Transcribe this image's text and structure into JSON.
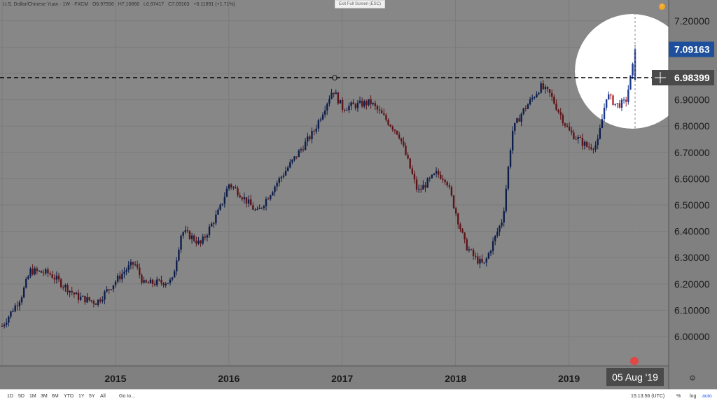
{
  "legend": {
    "symbol": "U.S. Dollar/Chinese Yuan · 1W · FXCM",
    "open": "O6.97556",
    "high": "H7.10866",
    "low": "L6.97417",
    "close": "C7.09163",
    "change": "+0.11891 (+1.71%)"
  },
  "toolbar": {
    "exit_fullscreen": "Exit Full Screen (ESC)",
    "ranges": [
      "1D",
      "5D",
      "1M",
      "3M",
      "6M",
      "YTD",
      "1Y",
      "5Y",
      "All"
    ],
    "goto": "Go to...",
    "time": "15:13:56 (UTC)",
    "pct": "%",
    "log": "log",
    "auto": "auto"
  },
  "labels": {
    "last_price": "7.09163",
    "crosshair_price": "6.98399",
    "crosshair_date": "05 Aug '19"
  },
  "colors": {
    "up": "#1c3a8c",
    "down": "#b0262e",
    "last_price_bg": "#1e4f9c",
    "crosshair_bg": "#4a4a4a",
    "overlay": "rgba(0,0,0,0.47)"
  },
  "chart_data": {
    "type": "candlestick",
    "x_ticks": [
      "2015",
      "2016",
      "2017",
      "2018",
      "2019"
    ],
    "y_ticks": [
      "6.00000",
      "6.10000",
      "6.20000",
      "6.30000",
      "6.40000",
      "6.50000",
      "6.60000",
      "6.70000",
      "6.80000",
      "6.90000",
      "7.00000",
      "7.10000",
      "7.20000"
    ],
    "ylim": [
      5.95,
      7.23
    ],
    "time_range": [
      "2014-01",
      "2019-08"
    ],
    "reference_line": 6.98399,
    "anchors": [
      [
        "2014-01",
        6.04
      ],
      [
        "2014-03",
        6.15
      ],
      [
        "2014-04",
        6.25
      ],
      [
        "2014-06",
        6.24
      ],
      [
        "2014-09",
        6.15
      ],
      [
        "2014-11",
        6.13
      ],
      [
        "2015-02",
        6.25
      ],
      [
        "2015-03",
        6.28
      ],
      [
        "2015-04",
        6.2
      ],
      [
        "2015-07",
        6.21
      ],
      [
        "2015-08",
        6.4
      ],
      [
        "2015-09",
        6.38
      ],
      [
        "2015-10",
        6.35
      ],
      [
        "2015-12",
        6.48
      ],
      [
        "2016-01",
        6.58
      ],
      [
        "2016-02",
        6.55
      ],
      [
        "2016-04",
        6.47
      ],
      [
        "2016-06",
        6.58
      ],
      [
        "2016-08",
        6.68
      ],
      [
        "2016-10",
        6.78
      ],
      [
        "2016-12",
        6.94
      ],
      [
        "2017-01",
        6.87
      ],
      [
        "2017-04",
        6.89
      ],
      [
        "2017-05",
        6.85
      ],
      [
        "2017-07",
        6.77
      ],
      [
        "2017-09",
        6.55
      ],
      [
        "2017-11",
        6.62
      ],
      [
        "2017-12",
        6.6
      ],
      [
        "2018-02",
        6.35
      ],
      [
        "2018-03",
        6.3
      ],
      [
        "2018-04",
        6.27
      ],
      [
        "2018-06",
        6.45
      ],
      [
        "2018-07",
        6.78
      ],
      [
        "2018-08",
        6.85
      ],
      [
        "2018-10",
        6.95
      ],
      [
        "2018-11",
        6.92
      ],
      [
        "2019-01",
        6.78
      ],
      [
        "2019-03",
        6.72
      ],
      [
        "2019-04",
        6.73
      ],
      [
        "2019-05",
        6.92
      ],
      [
        "2019-06",
        6.88
      ],
      [
        "2019-07",
        6.89
      ],
      [
        "2019-08",
        7.07
      ]
    ],
    "last_candle": {
      "open": 6.97556,
      "high": 7.10866,
      "low": 6.97417,
      "close": 7.09163
    }
  }
}
